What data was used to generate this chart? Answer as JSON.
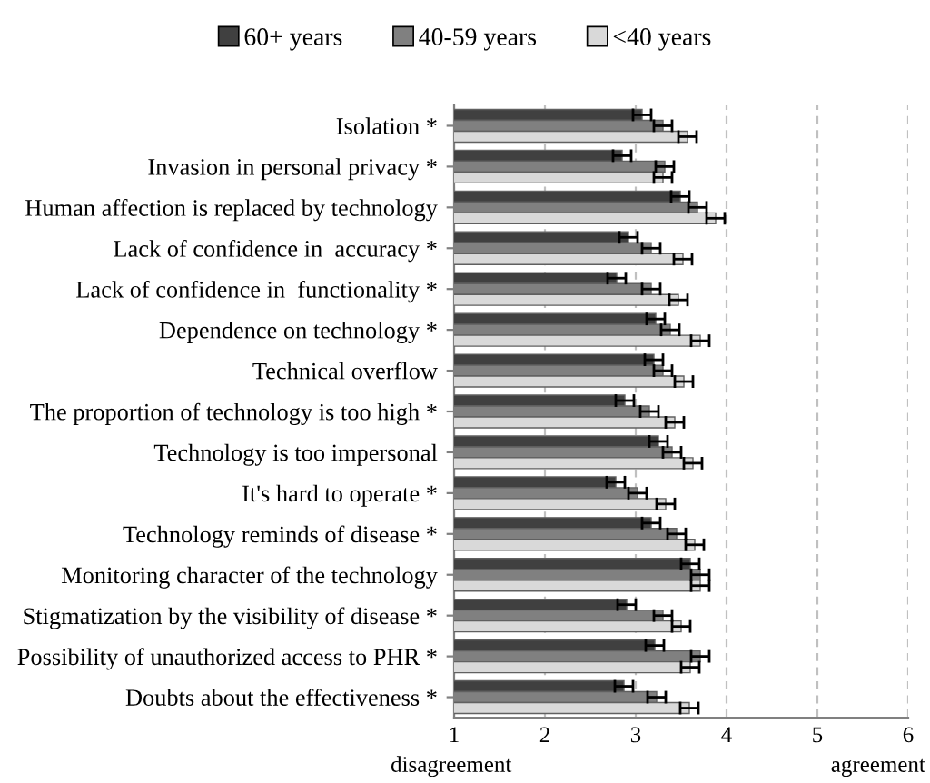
{
  "chart_data": {
    "type": "bar",
    "orientation": "horizontal",
    "categories": [
      "Isolation *",
      "Invasion in personal privacy *",
      "Human affection is replaced by technology",
      "Lack of confidence in  accuracy *",
      "Lack of confidence in  functionality *",
      "Dependence on technology *",
      "Technical overflow",
      "The proportion of technology is too high *",
      "Technology is too impersonal",
      "It's hard to operate *",
      "Technology reminds of disease *",
      "Monitoring character of the technology",
      "Stigmatization by the visibility of disease *",
      "Possibility of unauthorized access to PHR *",
      "Doubts about the effectiveness *"
    ],
    "series": [
      {
        "name": "60+ years",
        "color": "#404040",
        "values": [
          3.07,
          2.85,
          3.49,
          2.92,
          2.79,
          3.22,
          3.2,
          2.88,
          3.25,
          2.78,
          3.17,
          3.6,
          2.9,
          3.21,
          2.87
        ],
        "errors": [
          0.1,
          0.1,
          0.1,
          0.1,
          0.1,
          0.1,
          0.1,
          0.1,
          0.1,
          0.1,
          0.1,
          0.1,
          0.1,
          0.1,
          0.1
        ]
      },
      {
        "name": "40-59 years",
        "color": "#808080",
        "values": [
          3.3,
          3.32,
          3.68,
          3.17,
          3.17,
          3.38,
          3.3,
          3.15,
          3.4,
          3.02,
          3.45,
          3.71,
          3.3,
          3.71,
          3.23
        ],
        "errors": [
          0.1,
          0.1,
          0.1,
          0.1,
          0.1,
          0.1,
          0.1,
          0.1,
          0.1,
          0.1,
          0.1,
          0.1,
          0.1,
          0.1,
          0.1
        ]
      },
      {
        "name": "<40 years",
        "color": "#d9d9d9",
        "values": [
          3.57,
          3.3,
          3.88,
          3.52,
          3.47,
          3.71,
          3.53,
          3.43,
          3.63,
          3.33,
          3.65,
          3.71,
          3.5,
          3.6,
          3.59
        ],
        "errors": [
          0.1,
          0.1,
          0.1,
          0.1,
          0.1,
          0.1,
          0.1,
          0.1,
          0.1,
          0.1,
          0.1,
          0.1,
          0.1,
          0.1,
          0.1
        ]
      }
    ],
    "xlim": [
      1,
      6
    ],
    "xticks": [
      1,
      2,
      3,
      4,
      5,
      6
    ],
    "grid": "x",
    "legend": "top",
    "annotations": [
      "disagreement",
      "agreement"
    ]
  }
}
